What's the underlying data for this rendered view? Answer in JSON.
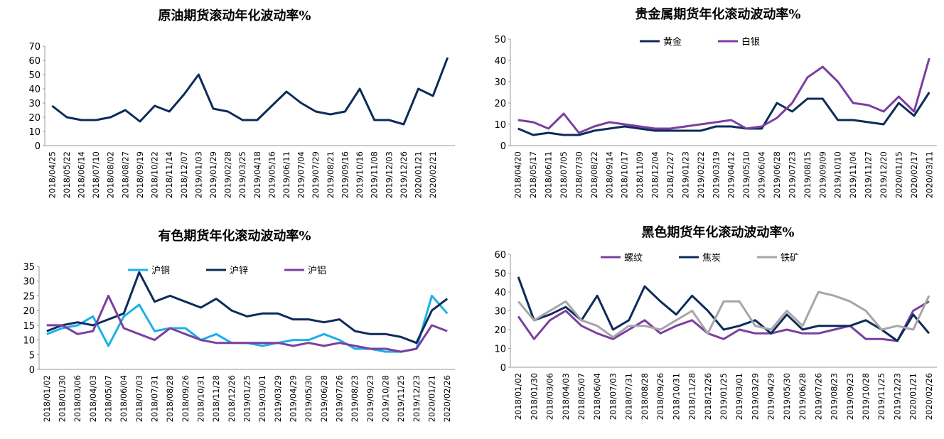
{
  "chart_data": [
    {
      "type": "line",
      "title": "原油期货滚动年化波动率%",
      "categories": [
        "2018/04/25",
        "2018/05/22",
        "2018/06/14",
        "2018/07/10",
        "2018/08/02",
        "2018/08/27",
        "2018/09/19",
        "2018/10/22",
        "2018/11/14",
        "2018/12/07",
        "2019/01/03",
        "2019/01/29",
        "2019/02/28",
        "2019/03/25",
        "2019/04/18",
        "2019/05/16",
        "2019/06/11",
        "2019/07/04",
        "2019/07/29",
        "2019/08/21",
        "2019/09/16",
        "2019/10/16",
        "2019/11/08",
        "2019/12/03",
        "2019/12/26",
        "2020/01/21",
        "2020/02/21",
        null
      ],
      "series": [
        {
          "color": "#0d2b5a",
          "values": [
            28,
            20,
            18,
            18,
            20,
            25,
            17,
            28,
            24,
            36,
            50,
            26,
            24,
            18,
            18,
            28,
            38,
            30,
            24,
            22,
            24,
            40,
            18,
            18,
            15,
            40,
            35,
            62
          ]
        }
      ],
      "ylim": [
        0,
        70
      ],
      "yticks": [
        0,
        10,
        20,
        30,
        40,
        50,
        60,
        70
      ]
    },
    {
      "type": "line",
      "title": "贵金属期货年化滚动波动率%",
      "categories": [
        "2018/04/20",
        "2018/05/17",
        "2018/06/11",
        "2018/07/05",
        "2018/07/30",
        "2018/08/22",
        "2018/09/14",
        "2018/10/17",
        "2018/11/09",
        "2018/12/04",
        "2018/12/27",
        "2019/01/23",
        "2019/02/22",
        "2019/03/19",
        "2019/04/12",
        "2019/05/10",
        "2019/06/04",
        "2019/06/28",
        "2019/07/23",
        "2019/08/15",
        "2019/09/09",
        "2019/10/10",
        "2019/11/04",
        "2019/11/27",
        "2019/12/20",
        "2020/01/15",
        "2020/02/17",
        "2020/03/11"
      ],
      "series": [
        {
          "name": "黄金",
          "color": "#0d2b5a",
          "values": [
            8,
            5,
            6,
            5,
            5,
            7,
            8,
            9,
            8,
            7,
            7,
            7,
            7,
            9,
            9,
            8,
            8,
            20,
            16,
            22,
            22,
            12,
            12,
            11,
            10,
            20,
            14,
            25
          ]
        },
        {
          "name": "白银",
          "color": "#7b3fa0",
          "values": [
            12,
            11,
            8,
            15,
            6,
            9,
            11,
            10,
            9,
            8,
            8,
            9,
            10,
            11,
            12,
            8,
            9,
            13,
            20,
            32,
            37,
            30,
            20,
            19,
            16,
            23,
            16,
            41
          ]
        }
      ],
      "ylim": [
        0,
        50
      ],
      "yticks": [
        0,
        10,
        20,
        30,
        40,
        50
      ]
    },
    {
      "type": "line",
      "title": "有色期货年化滚动波动率%",
      "categories": [
        "2018/01/02",
        "2018/01/30",
        "2018/03/06",
        "2018/04/03",
        "2018/05/07",
        "2018/06/04",
        "2018/07/03",
        "2018/07/31",
        "2018/08/28",
        "2018/09/26",
        "2018/10/31",
        "2018/11/28",
        "2018/12/26",
        "2019/01/25",
        "2019/03/01",
        "2019/03/29",
        "2019/04/29",
        "2019/05/30",
        "2019/06/28",
        "2019/07/26",
        "2019/08/23",
        "2019/09/23",
        "2019/10/28",
        "2019/11/25",
        "2019/12/23",
        "2020/01/21",
        "2020/02/26"
      ],
      "series": [
        {
          "name": "沪铜",
          "color": "#1ab0e8",
          "values": [
            12,
            14,
            15,
            18,
            8,
            18,
            22,
            13,
            14,
            14,
            10,
            12,
            9,
            9,
            8,
            9,
            10,
            10,
            12,
            10,
            7,
            7,
            6,
            6,
            7,
            25,
            19
          ]
        },
        {
          "name": "沪锌",
          "color": "#0d2b5a",
          "values": [
            13,
            15,
            16,
            15,
            17,
            19,
            33,
            23,
            25,
            23,
            21,
            24,
            20,
            18,
            19,
            19,
            17,
            17,
            16,
            17,
            13,
            12,
            12,
            11,
            9,
            20,
            24
          ]
        },
        {
          "name": "沪铝",
          "color": "#7b3fa0",
          "values": [
            15,
            15,
            12,
            13,
            25,
            14,
            12,
            10,
            14,
            12,
            10,
            9,
            9,
            9,
            9,
            9,
            8,
            9,
            8,
            9,
            8,
            7,
            7,
            6,
            7,
            15,
            13
          ]
        }
      ],
      "ylim": [
        0,
        35
      ],
      "yticks": [
        0,
        5,
        10,
        15,
        20,
        25,
        30,
        35
      ]
    },
    {
      "type": "line",
      "title": "黑色期货年化滚动波动率%",
      "categories": [
        "2018/01/02",
        "2018/01/30",
        "2018/03/06",
        "2018/04/03",
        "2018/05/07",
        "2018/06/04",
        "2018/07/03",
        "2018/07/31",
        "2018/08/28",
        "2018/09/26",
        "2018/10/31",
        "2018/11/28",
        "2018/12/26",
        "2019/01/25",
        "2019/03/01",
        "2019/03/29",
        "2019/04/29",
        "2019/05/30",
        "2019/06/28",
        "2019/07/26",
        "2019/08/23",
        "2019/09/23",
        "2019/10/28",
        "2019/11/25",
        "2019/12/23",
        "2020/01/21",
        "2020/02/26"
      ],
      "series": [
        {
          "name": "螺纹",
          "color": "#7b3fa0",
          "values": [
            27,
            15,
            25,
            30,
            22,
            18,
            15,
            20,
            25,
            18,
            22,
            25,
            18,
            15,
            20,
            18,
            18,
            20,
            18,
            18,
            20,
            22,
            15,
            15,
            14,
            30,
            35
          ]
        },
        {
          "name": "焦炭",
          "color": "#0d2b5a",
          "values": [
            48,
            25,
            28,
            32,
            25,
            38,
            20,
            25,
            43,
            35,
            28,
            38,
            30,
            20,
            22,
            25,
            18,
            28,
            20,
            22,
            22,
            22,
            25,
            20,
            14,
            28,
            18
          ]
        },
        {
          "name": "铁矿",
          "color": "#a6a6a6",
          "values": [
            35,
            25,
            30,
            35,
            25,
            22,
            16,
            22,
            22,
            20,
            25,
            30,
            18,
            35,
            35,
            22,
            20,
            30,
            22,
            40,
            38,
            35,
            30,
            20,
            22,
            20,
            38
          ]
        }
      ],
      "ylim": [
        0,
        60
      ],
      "yticks": [
        0,
        10,
        20,
        30,
        40,
        50,
        60
      ]
    }
  ]
}
